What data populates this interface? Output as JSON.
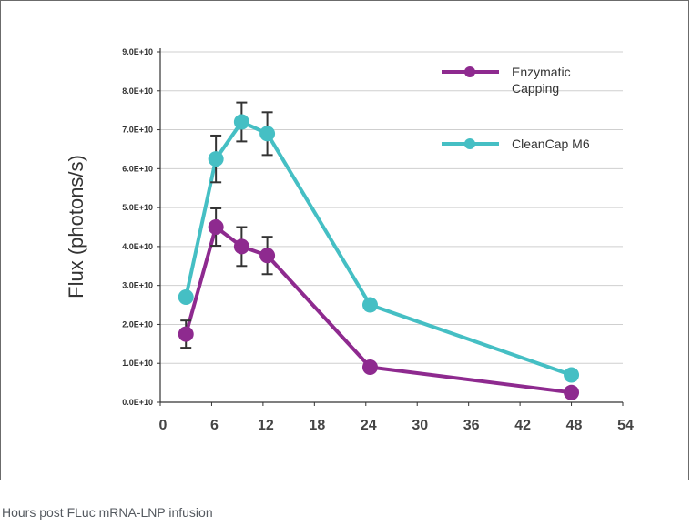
{
  "caption": "Hours post FLuc mRNA-LNP infusion",
  "chart_data": {
    "type": "line",
    "ylabel": "Flux (photons/s)",
    "xlabel": "",
    "xlim": [
      0,
      54
    ],
    "ylim": [
      0,
      90000000000.0
    ],
    "x_ticks": [
      "0",
      "6",
      "12",
      "18",
      "24",
      "30",
      "36",
      "42",
      "48",
      "54"
    ],
    "y_ticks": [
      "0.0E+10",
      "1.0E+10",
      "2.0E+10",
      "3.0E+10",
      "4.0E+10",
      "5.0E+10",
      "6.0E+10",
      "7.0E+10",
      "8.0E+10",
      "9.0E+10"
    ],
    "grid": true,
    "legend_position": "top-right",
    "series": [
      {
        "name": "Enzymatic Capping",
        "legend_lines": [
          "Enzymatic",
          "Capping"
        ],
        "color": "#8e2a8f",
        "x": [
          3,
          6.5,
          9.5,
          12.5,
          24.5,
          48
        ],
        "y": [
          17500000000.0,
          45000000000.0,
          40000000000.0,
          37700000000.0,
          9000000000.0,
          2500000000.0
        ],
        "error": [
          3500000000.0,
          4800000000.0,
          5000000000.0,
          4800000000.0,
          null,
          null
        ]
      },
      {
        "name": "CleanCap M6",
        "legend_lines": [
          "CleanCap M6"
        ],
        "color": "#45bfc4",
        "x": [
          3,
          6.5,
          9.5,
          12.5,
          24.5,
          48
        ],
        "y": [
          27000000000.0,
          62500000000.0,
          72000000000.0,
          69000000000.0,
          25000000000.0,
          7000000000.0
        ],
        "error": [
          null,
          6000000000.0,
          5000000000.0,
          5500000000.0,
          null,
          null
        ]
      }
    ]
  }
}
